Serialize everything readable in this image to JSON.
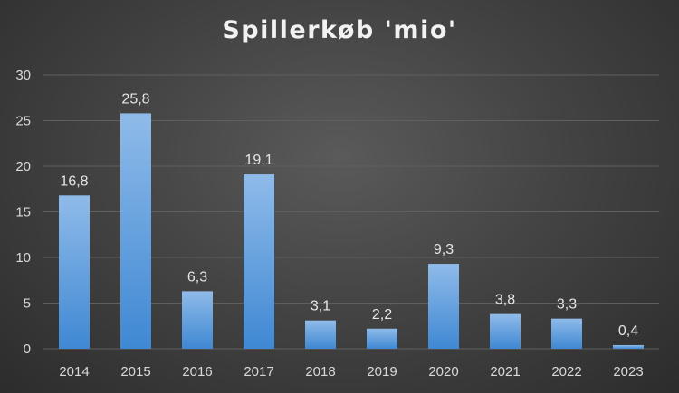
{
  "chart_data": {
    "type": "bar",
    "title": "Spillerkøb 'mio'",
    "categories": [
      "2014",
      "2015",
      "2016",
      "2017",
      "2018",
      "2019",
      "2020",
      "2021",
      "2022",
      "2023"
    ],
    "values": [
      16.8,
      25.8,
      6.3,
      19.1,
      3.1,
      2.2,
      9.3,
      3.8,
      3.3,
      0.4
    ],
    "data_labels": [
      "16,8",
      "25,8",
      "6,3",
      "19,1",
      "3,1",
      "2,2",
      "9,3",
      "3,8",
      "3,3",
      "0,4"
    ],
    "y_ticks": [
      "0",
      "5",
      "10",
      "15",
      "20",
      "25",
      "30"
    ],
    "ylim": [
      0,
      30
    ],
    "xlabel": "",
    "ylabel": "",
    "grid": true,
    "legend": "none",
    "colors": {
      "bar_top": "#8fbbe9",
      "bar_bottom": "#3f88d3",
      "grid": "#5f5f5f",
      "background": "#3a3a3a"
    }
  }
}
